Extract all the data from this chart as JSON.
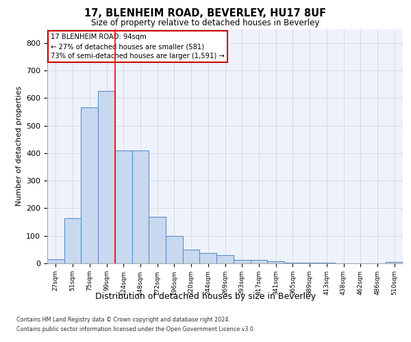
{
  "title_line1": "17, BLENHEIM ROAD, BEVERLEY, HU17 8UF",
  "title_line2": "Size of property relative to detached houses in Beverley",
  "xlabel": "Distribution of detached houses by size in Beverley",
  "ylabel": "Number of detached properties",
  "categories": [
    "27sqm",
    "51sqm",
    "75sqm",
    "99sqm",
    "124sqm",
    "148sqm",
    "172sqm",
    "196sqm",
    "220sqm",
    "244sqm",
    "269sqm",
    "293sqm",
    "317sqm",
    "341sqm",
    "365sqm",
    "389sqm",
    "413sqm",
    "438sqm",
    "462sqm",
    "486sqm",
    "510sqm"
  ],
  "values": [
    15,
    165,
    565,
    625,
    410,
    410,
    170,
    100,
    50,
    37,
    30,
    12,
    12,
    7,
    3,
    3,
    2,
    0,
    0,
    0,
    5
  ],
  "bar_color": "#c8d9ef",
  "bar_edge_color": "#5b8fc9",
  "annotation_text_line1": "17 BLENHEIM ROAD: 94sqm",
  "annotation_text_line2": "← 27% of detached houses are smaller (581)",
  "annotation_text_line3": "73% of semi-detached houses are larger (1,591) →",
  "annotation_box_color": "#ffffff",
  "annotation_box_edge_color": "#cc0000",
  "ylim": [
    0,
    850
  ],
  "yticks": [
    0,
    100,
    200,
    300,
    400,
    500,
    600,
    700,
    800
  ],
  "grid_color": "#d0d8e8",
  "background_color": "#eef2fa",
  "footnote1": "Contains HM Land Registry data © Crown copyright and database right 2024.",
  "footnote2": "Contains public sector information licensed under the Open Government Licence v3.0."
}
